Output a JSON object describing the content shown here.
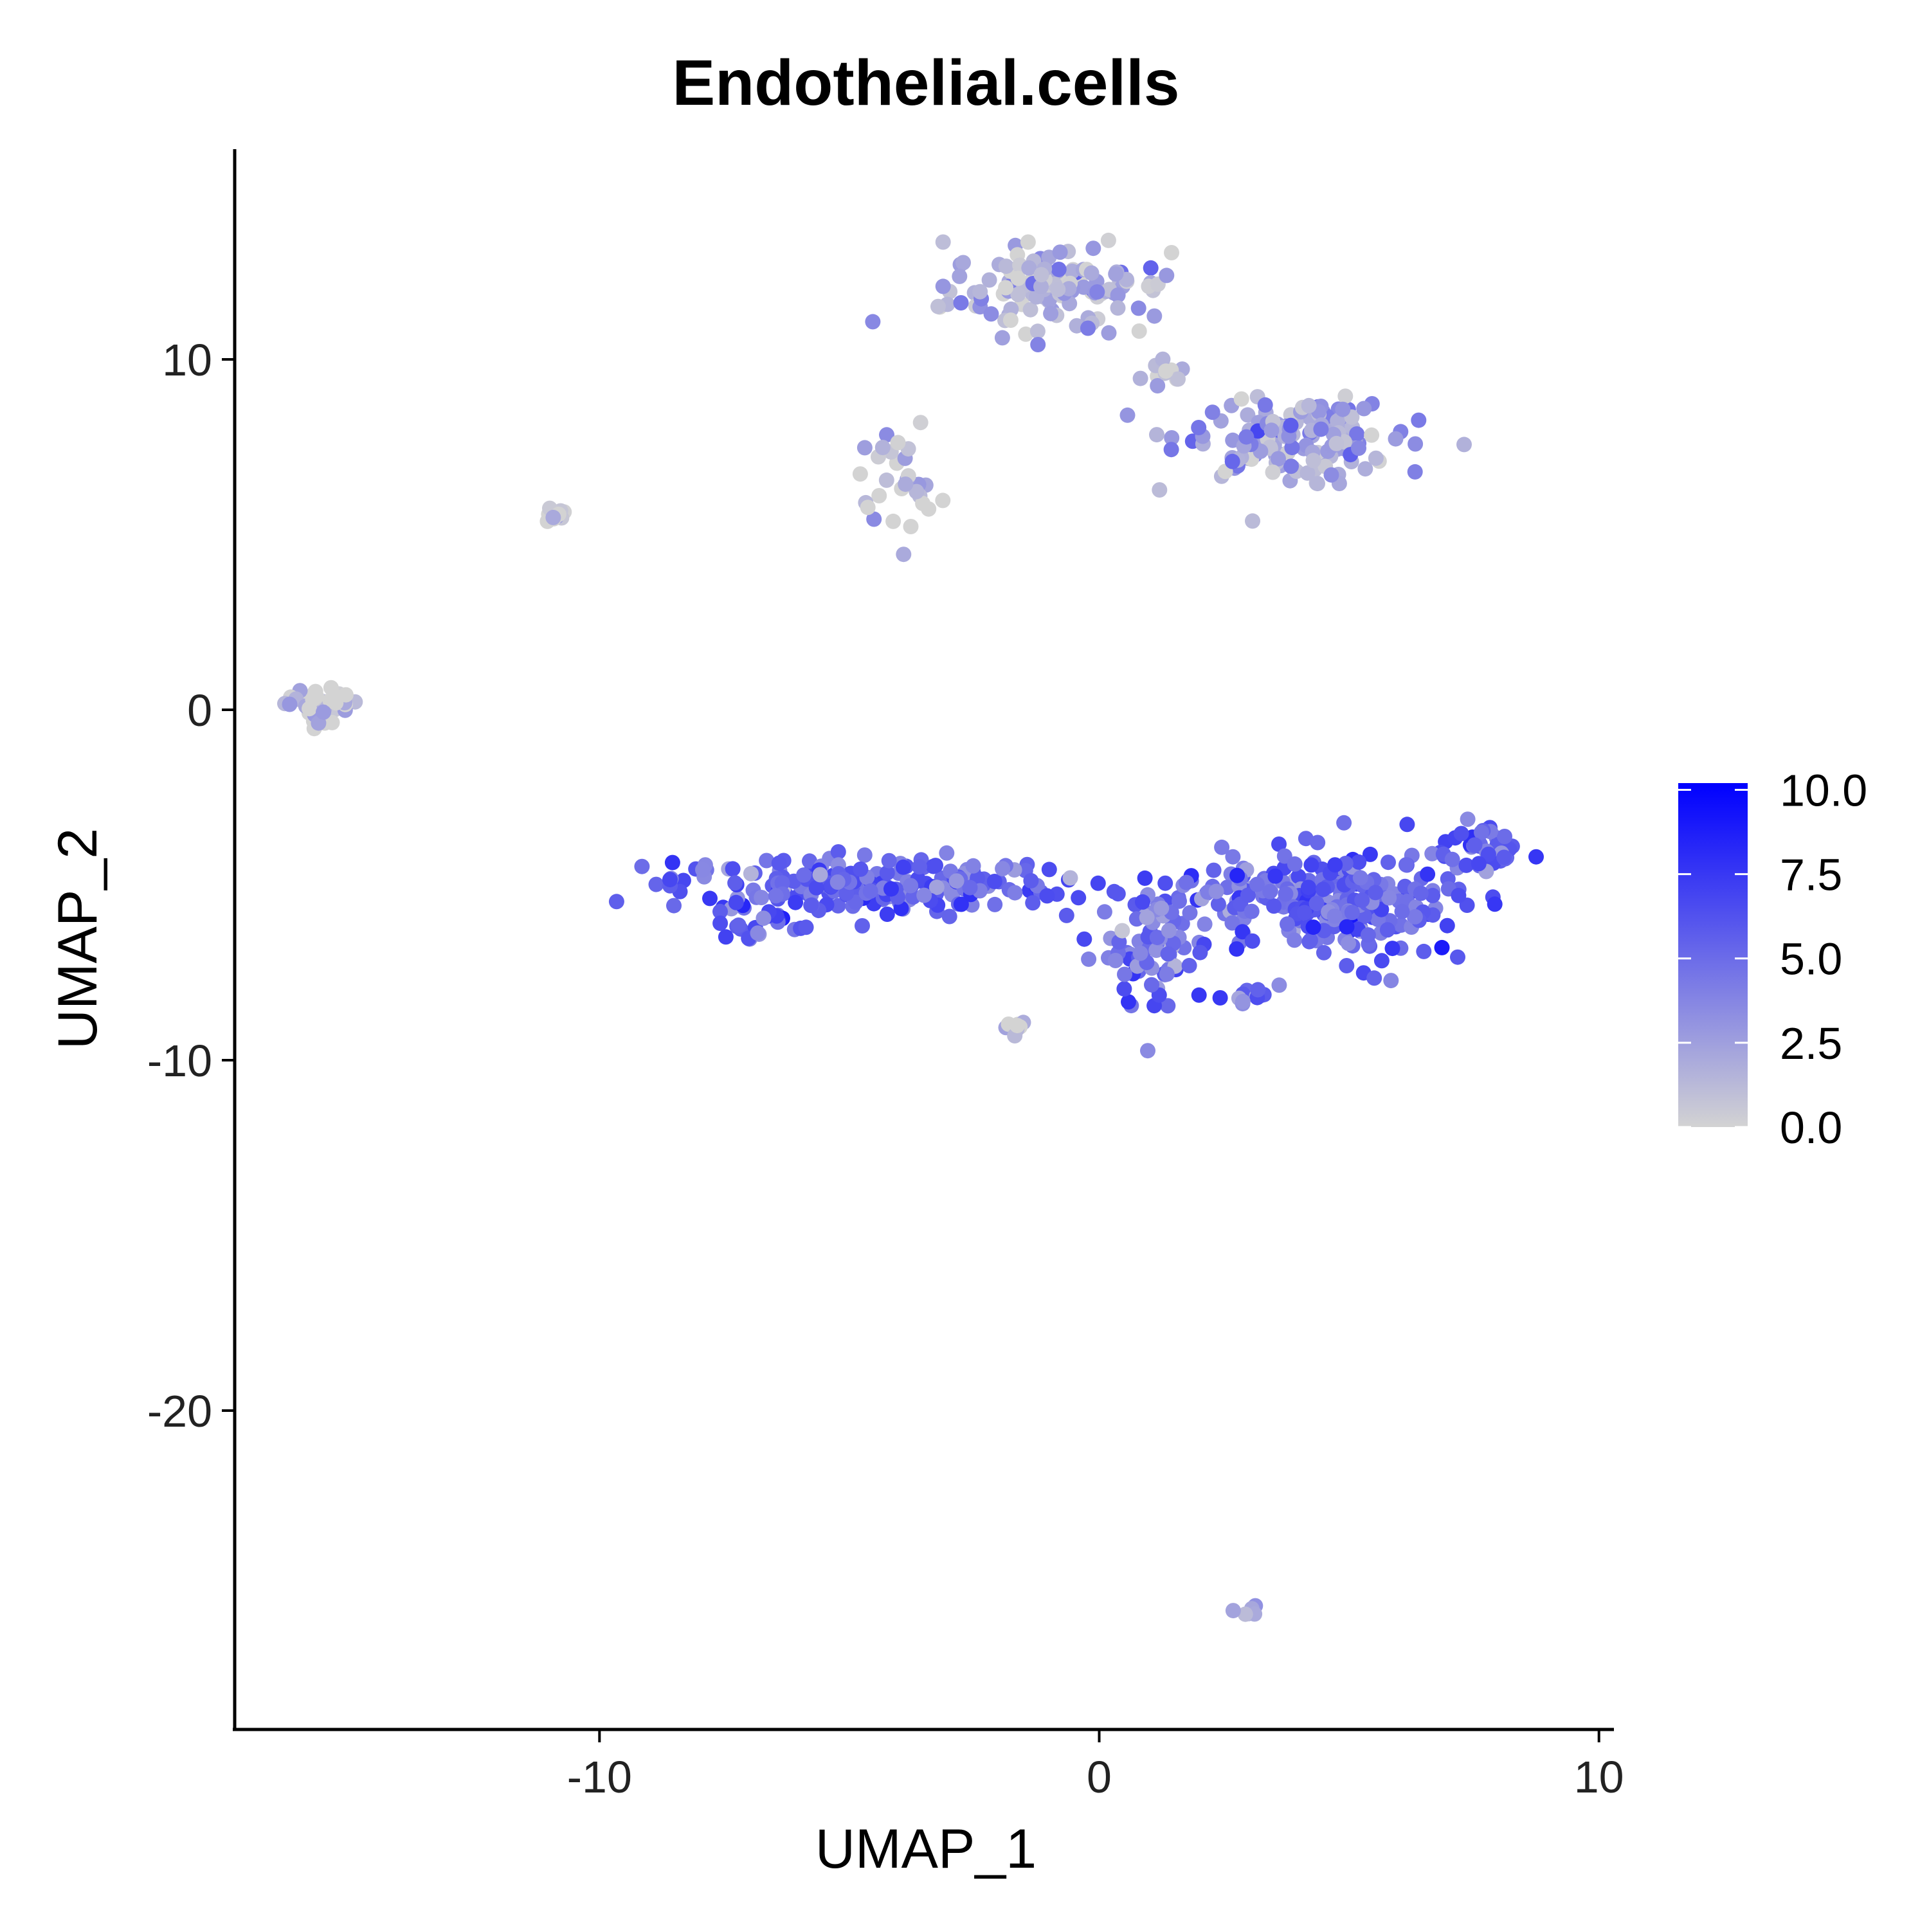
{
  "chart_data": {
    "type": "scatter",
    "title": "Endothelial.cells",
    "xlabel": "UMAP_1",
    "ylabel": "UMAP_2",
    "xlim": [
      -17.3,
      10.3
    ],
    "ylim": [
      -29.1,
      16.0
    ],
    "xticks": [
      -10,
      0,
      10
    ],
    "yticks": [
      10,
      0,
      -10,
      -20
    ],
    "xtick_labels": [
      "-10",
      "0",
      "10"
    ],
    "ytick_labels": [
      "10",
      "0",
      "-10",
      "-20"
    ],
    "grid": false,
    "legend_position": "right",
    "color_scale": {
      "low": "#d3d3d3",
      "high": "#0000ff",
      "min": 0,
      "max": 10.2,
      "ticks": [
        10.0,
        7.5,
        5.0,
        2.5,
        0.0
      ],
      "tick_labels": [
        "10.0",
        "7.5",
        "5.0",
        "2.5",
        "0.0"
      ]
    },
    "clusters": [
      {
        "center": [
          -15.6,
          0.2
        ],
        "spread": [
          0.35,
          0.28
        ],
        "count": 40,
        "expr": 0.6
      },
      {
        "center": [
          -10.9,
          5.5
        ],
        "spread": [
          0.15,
          0.1
        ],
        "count": 12,
        "expr": 0.2
      },
      {
        "center": [
          -4.0,
          6.5
        ],
        "spread": [
          0.45,
          0.9
        ],
        "count": 30,
        "expr": 0.5
      },
      {
        "center": [
          -1.7,
          -9.1
        ],
        "spread": [
          0.12,
          0.12
        ],
        "count": 8,
        "expr": 0.8
      },
      {
        "center": [
          2.9,
          -25.7
        ],
        "spread": [
          0.2,
          0.1
        ],
        "count": 6,
        "expr": 2.4
      },
      {
        "center": [
          -0.8,
          12.0
        ],
        "spread": [
          1.1,
          0.6
        ],
        "count": 130,
        "expr": 1.6
      },
      {
        "center": [
          1.3,
          9.7
        ],
        "spread": [
          0.3,
          0.4
        ],
        "count": 12,
        "expr": 1.0
      },
      {
        "center": [
          3.7,
          7.8
        ],
        "spread": [
          1.1,
          0.6
        ],
        "count": 150,
        "expr": 2.4
      },
      {
        "center": [
          -4.7,
          -5.0
        ],
        "spread": [
          2.0,
          0.4
        ],
        "count": 230,
        "expr": 5.2
      },
      {
        "center": [
          -6.7,
          -6.1
        ],
        "spread": [
          0.5,
          0.2
        ],
        "count": 20,
        "expr": 5.6
      },
      {
        "center": [
          1.2,
          -6.9
        ],
        "spread": [
          0.5,
          0.9
        ],
        "count": 80,
        "expr": 4.6
      },
      {
        "center": [
          3.2,
          -5.3
        ],
        "spread": [
          1.3,
          0.5
        ],
        "count": 100,
        "expr": 4.8
      },
      {
        "center": [
          5.3,
          -5.6
        ],
        "spread": [
          1.0,
          0.8
        ],
        "count": 170,
        "expr": 5.4
      },
      {
        "center": [
          7.6,
          -4.1
        ],
        "spread": [
          0.4,
          0.35
        ],
        "count": 40,
        "expr": 5.0
      },
      {
        "center": [
          3.0,
          -8.1
        ],
        "spread": [
          0.3,
          0.12
        ],
        "count": 12,
        "expr": 3.8
      }
    ]
  }
}
